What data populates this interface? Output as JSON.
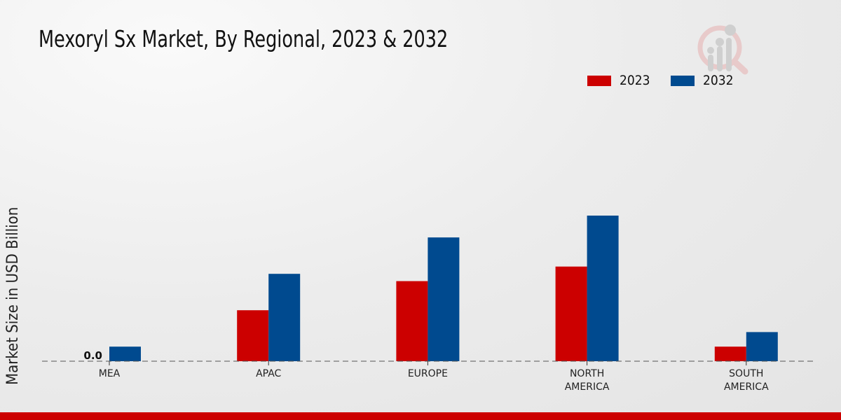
{
  "chart_data": {
    "type": "bar",
    "title": "Mexoryl Sx Market, By Regional, 2023 & 2032",
    "xlabel": "",
    "ylabel": "Market Size in USD Billion",
    "categories": [
      "MEA",
      "APAC",
      "EUROPE",
      "NORTH AMERICA",
      "SOUTH AMERICA"
    ],
    "category_lines": [
      [
        "MEA"
      ],
      [
        "APAC"
      ],
      [
        "EUROPE"
      ],
      [
        "NORTH",
        "AMERICA"
      ],
      [
        "SOUTH",
        "AMERICA"
      ]
    ],
    "series": [
      {
        "name": "2023",
        "color": "#cc0000",
        "values": [
          0.0,
          0.07,
          0.11,
          0.13,
          0.02
        ]
      },
      {
        "name": "2032",
        "color": "#004a8f",
        "values": [
          0.02,
          0.12,
          0.17,
          0.2,
          0.04
        ]
      }
    ],
    "data_labels": [
      {
        "category": "MEA",
        "series": "2023",
        "text": "0.0"
      }
    ],
    "ylim": [
      0,
      0.4
    ],
    "grid": false,
    "legend_position": "top-right"
  }
}
